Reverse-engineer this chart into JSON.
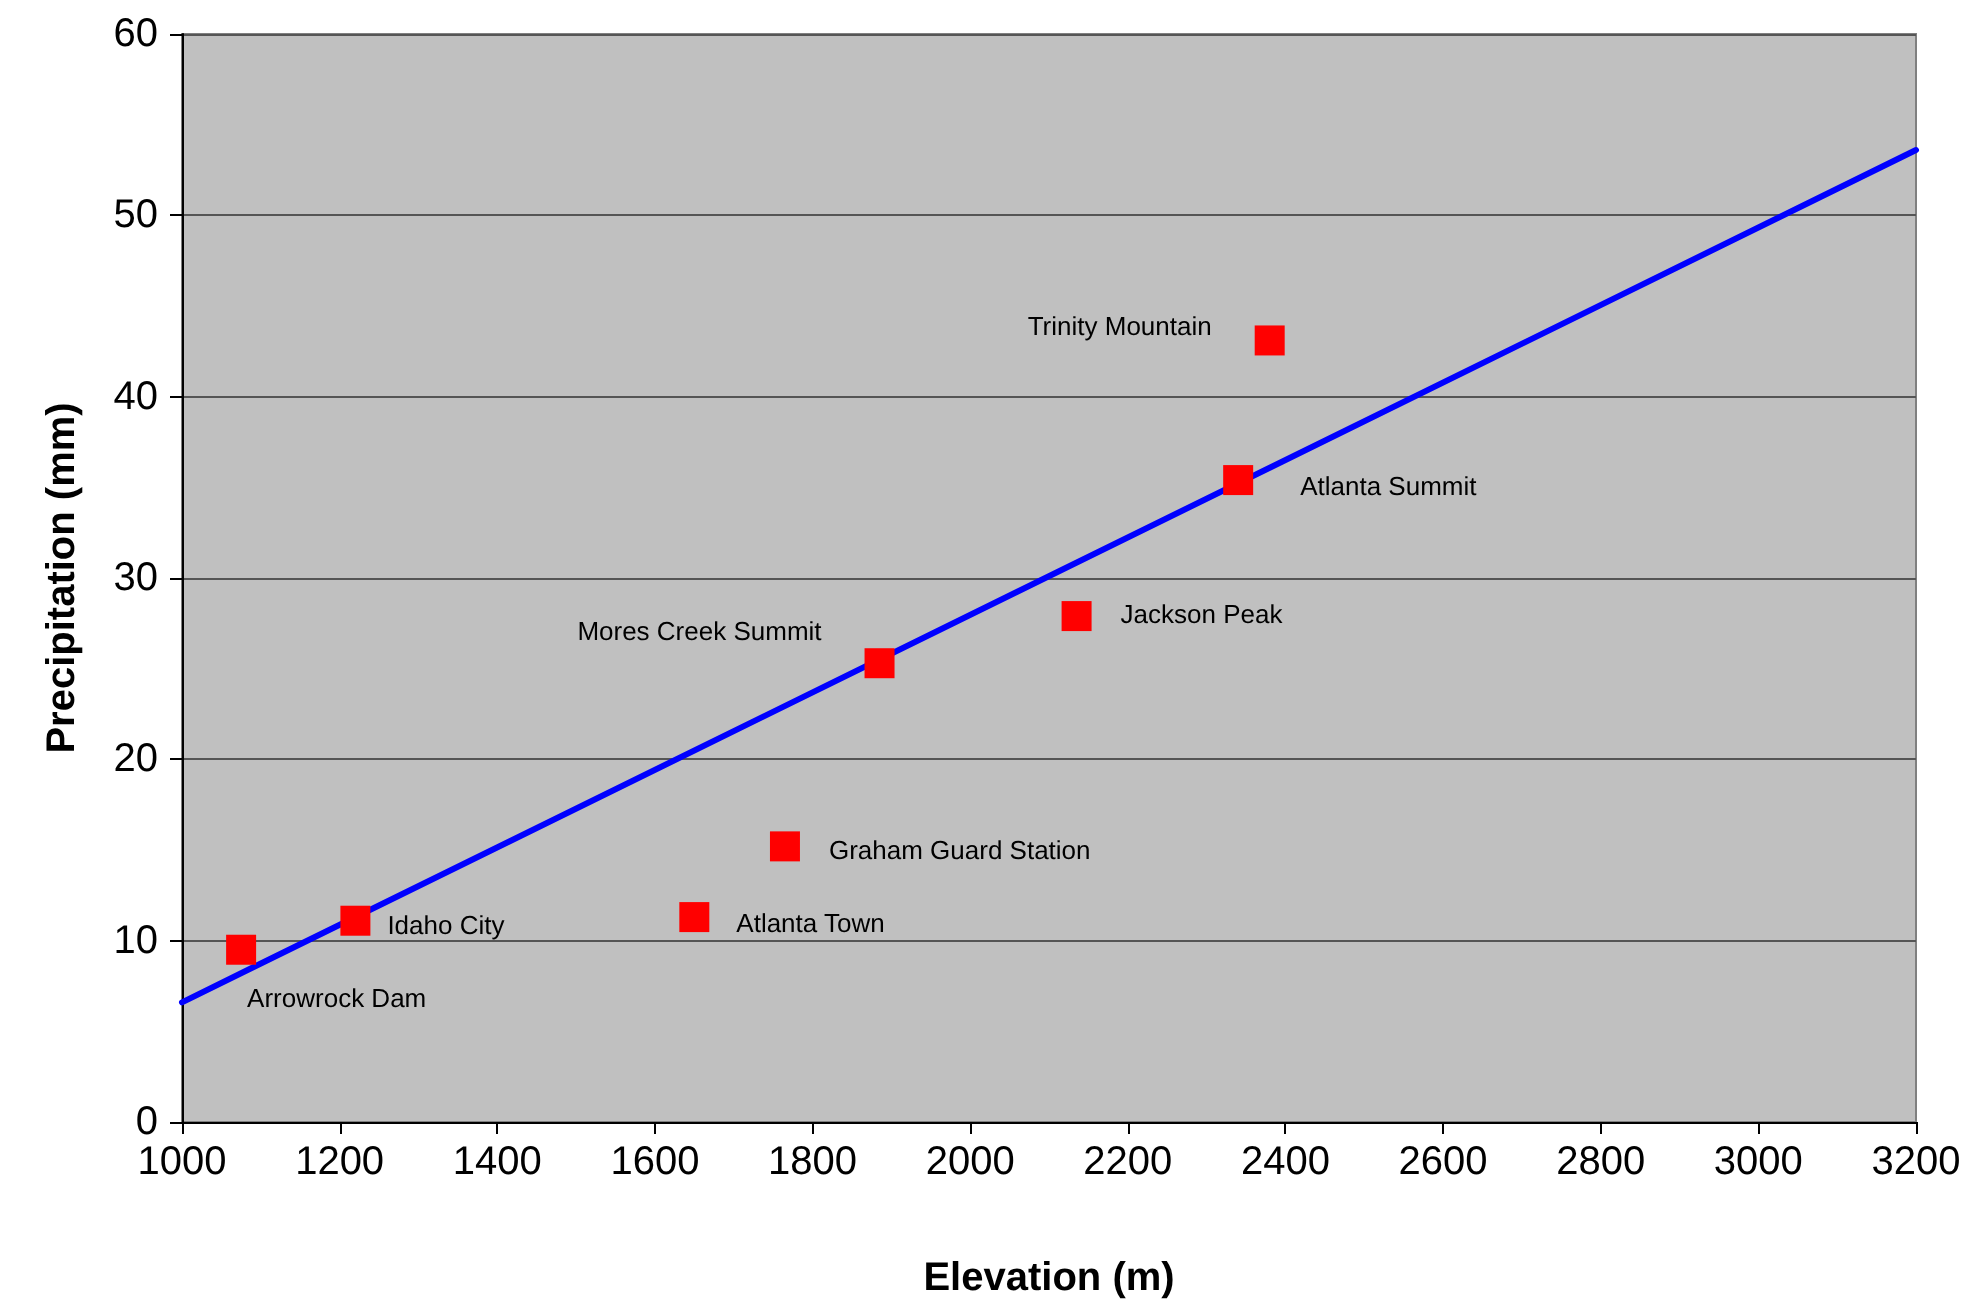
{
  "chart_data": {
    "type": "scatter",
    "xlabel": "Elevation (m)",
    "ylabel": "Precipitation (mm)",
    "series": [
      {
        "type": "line",
        "color": "#0000ff",
        "marker": "none",
        "line_style": "solid",
        "x": [
          1000,
          3200
        ],
        "values": [
          6.6,
          53.6
        ]
      },
      {
        "color": "#ff0000",
        "marker": "square",
        "x": [
          1075,
          1220,
          1650,
          1765,
          1885,
          2135,
          2340,
          2380
        ],
        "values": [
          9.5,
          11.1,
          11.3,
          15.2,
          25.3,
          27.9,
          35.4,
          43.1
        ]
      }
    ],
    "xlim": [
      1000,
      3200
    ],
    "xticks": [
      1000,
      1200,
      1400,
      1600,
      1800,
      2000,
      2200,
      2400,
      2600,
      2800,
      3000,
      3200
    ],
    "ylim": [
      0,
      60
    ],
    "yticks": [
      0,
      10,
      20,
      30,
      40,
      50,
      60
    ],
    "grid": "y",
    "annotations": [
      {
        "text": "Arrowrock Dam",
        "x": 1075,
        "y": 9.5
      },
      {
        "text": "Idaho City",
        "x": 1220,
        "y": 11.1
      },
      {
        "text": "Atlanta Town",
        "x": 1650,
        "y": 11.3
      },
      {
        "text": "Graham Guard Station",
        "x": 1765,
        "y": 15.2
      },
      {
        "text": "Mores Creek Summit",
        "x": 1885,
        "y": 25.3
      },
      {
        "text": "Jackson Peak",
        "x": 2135,
        "y": 27.9
      },
      {
        "text": "Atlanta Summit",
        "x": 2340,
        "y": 35.4
      },
      {
        "text": "Trinity Mountain",
        "x": 2380,
        "y": 43.1
      }
    ]
  }
}
